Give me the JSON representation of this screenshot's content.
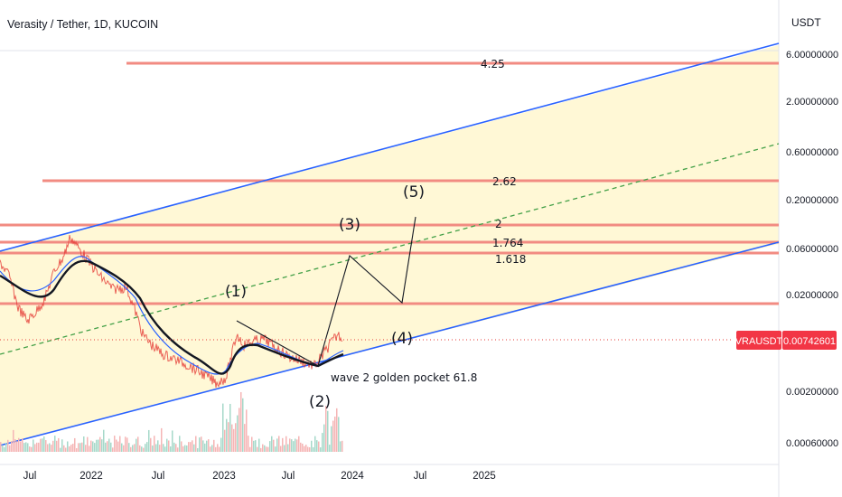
{
  "header": {
    "title": "Verasity / Tether, 1D, KUCOIN",
    "currency": "USDT"
  },
  "chart_data": {
    "type": "line",
    "scale": "log",
    "x_ticks": [
      "Jul",
      "2022",
      "Jul",
      "2023",
      "Jul",
      "2024",
      "Jul",
      "2025"
    ],
    "y_ticks": [
      "6.00000000",
      "2.00000000",
      "0.60000000",
      "0.20000000",
      "0.06000000",
      "0.02000000",
      "0.00200000",
      "0.00060000"
    ],
    "last_price": {
      "symbol": "VRAUSDT",
      "value": "0.00742601"
    },
    "fib_levels": [
      {
        "label": "4.25"
      },
      {
        "label": "2.62"
      },
      {
        "label": "2"
      },
      {
        "label": "1.764"
      },
      {
        "label": "1.618"
      }
    ],
    "wave_labels": [
      "(1)",
      "(2)",
      "(3)",
      "(4)",
      "(5)"
    ],
    "annotation": "wave 2 golden pocket 61.8",
    "colors": {
      "channel": "#2962ff",
      "channel_fill": "#fff8d6",
      "fib": "#f28b82",
      "midline": "#43a047",
      "price": "#e53935",
      "tag": "#f23645"
    }
  }
}
